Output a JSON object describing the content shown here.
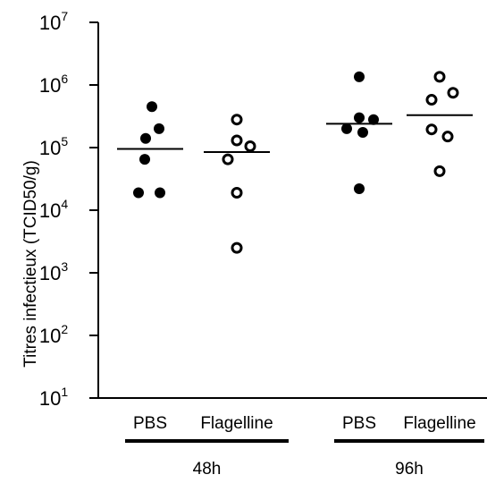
{
  "chart_data": {
    "type": "scatter",
    "ylabel": "Titres infectieux  (TCID50/g)",
    "yscale": "log10",
    "ylim": [
      10,
      10000000
    ],
    "y_ticks": [
      {
        "base": "10",
        "exp": "1",
        "value": 10
      },
      {
        "base": "10",
        "exp": "2",
        "value": 100
      },
      {
        "base": "10",
        "exp": "3",
        "value": 1000
      },
      {
        "base": "10",
        "exp": "4",
        "value": 10000
      },
      {
        "base": "10",
        "exp": "5",
        "value": 100000
      },
      {
        "base": "10",
        "exp": "6",
        "value": 1000000
      },
      {
        "base": "10",
        "exp": "7",
        "value": 10000000
      }
    ],
    "groups": [
      {
        "label": "48h",
        "series": [
          {
            "name": "PBS",
            "marker": "filled",
            "values": [
              450000,
              200000,
              140000,
              65000,
              19000,
              19000
            ],
            "median": 95000
          },
          {
            "name": "Flagelline",
            "marker": "open",
            "values": [
              280000,
              130000,
              105000,
              65000,
              19000,
              2500
            ],
            "median": 85000
          }
        ]
      },
      {
        "label": "96h",
        "series": [
          {
            "name": "PBS",
            "marker": "filled",
            "values": [
              1350000,
              300000,
              280000,
              200000,
              175000,
              22000
            ],
            "median": 240000
          },
          {
            "name": "Flagelline",
            "marker": "open",
            "values": [
              1350000,
              750000,
              580000,
              195000,
              150000,
              42000
            ],
            "median": 330000
          }
        ]
      }
    ],
    "grid": false,
    "legend": "none"
  },
  "colors": {
    "marker": "#000000",
    "axis": "#000000",
    "background": "#ffffff"
  }
}
